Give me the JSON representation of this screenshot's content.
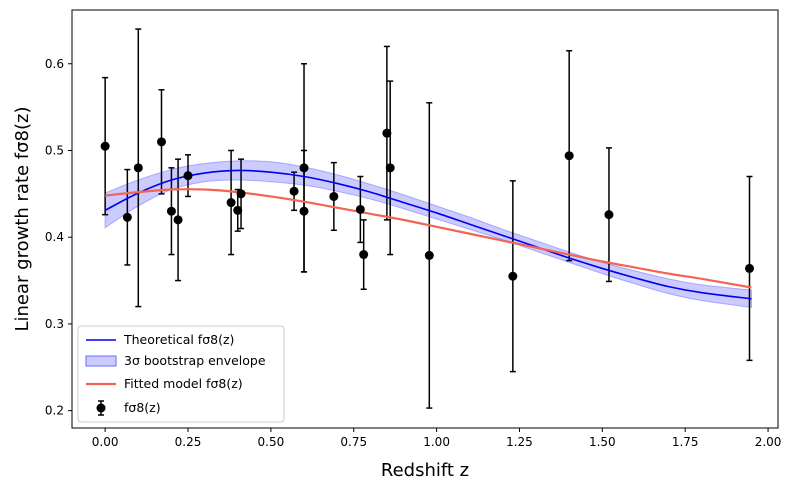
{
  "chart_data": {
    "type": "scatter",
    "xlabel": "Redshift z",
    "ylabel": "Linear growth rate fσ8(z)",
    "xlim": [
      -0.1,
      2.03
    ],
    "ylim": [
      0.18,
      0.662
    ],
    "x_ticks": [
      0.0,
      0.25,
      0.5,
      0.75,
      1.0,
      1.25,
      1.5,
      1.75,
      2.0
    ],
    "x_tick_labels": [
      "0.00",
      "0.25",
      "0.50",
      "0.75",
      "1.00",
      "1.25",
      "1.50",
      "1.75",
      "2.00"
    ],
    "y_ticks": [
      0.2,
      0.3,
      0.4,
      0.5,
      0.6
    ],
    "y_tick_labels": [
      "0.2",
      "0.3",
      "0.4",
      "0.5",
      "0.6"
    ],
    "grid": false,
    "legend_position": "lower-left",
    "colors": {
      "theoretical": "#0000ee",
      "envelope_fill": "#6b6bff",
      "fitted": "#f26552",
      "data": "#000000"
    },
    "series": [
      {
        "name": "Theoretical fσ8(z)",
        "type": "line",
        "x": [
          0.0,
          0.1,
          0.2,
          0.3,
          0.4,
          0.5,
          0.6,
          0.7,
          0.8,
          0.9,
          1.0,
          1.1,
          1.2,
          1.3,
          1.4,
          1.5,
          1.6,
          1.7,
          1.8,
          1.95
        ],
        "y": [
          0.431,
          0.451,
          0.466,
          0.474,
          0.477,
          0.475,
          0.47,
          0.462,
          0.452,
          0.44,
          0.428,
          0.415,
          0.402,
          0.389,
          0.376,
          0.364,
          0.353,
          0.343,
          0.336,
          0.329
        ]
      },
      {
        "name": "3σ bootstrap envelope",
        "type": "band",
        "x": [
          0.0,
          0.1,
          0.2,
          0.3,
          0.4,
          0.5,
          0.6,
          0.7,
          0.8,
          0.9,
          1.0,
          1.1,
          1.2,
          1.3,
          1.4,
          1.5,
          1.6,
          1.7,
          1.8,
          1.95
        ],
        "lower": [
          0.411,
          0.436,
          0.455,
          0.464,
          0.466,
          0.464,
          0.46,
          0.453,
          0.444,
          0.433,
          0.421,
          0.409,
          0.397,
          0.384,
          0.371,
          0.358,
          0.346,
          0.335,
          0.327,
          0.319
        ],
        "upper": [
          0.451,
          0.466,
          0.478,
          0.485,
          0.488,
          0.487,
          0.481,
          0.472,
          0.461,
          0.449,
          0.436,
          0.423,
          0.409,
          0.396,
          0.383,
          0.371,
          0.361,
          0.352,
          0.345,
          0.339
        ]
      },
      {
        "name": "Fitted model fσ8(z)",
        "type": "line",
        "x": [
          0.0,
          0.1,
          0.2,
          0.3,
          0.4,
          0.5,
          0.6,
          0.7,
          0.8,
          0.9,
          1.0,
          1.1,
          1.2,
          1.3,
          1.4,
          1.5,
          1.6,
          1.7,
          1.8,
          1.95
        ],
        "y": [
          0.448,
          0.452,
          0.455,
          0.455,
          0.452,
          0.447,
          0.441,
          0.434,
          0.427,
          0.42,
          0.412,
          0.404,
          0.396,
          0.388,
          0.38,
          0.372,
          0.365,
          0.358,
          0.352,
          0.342
        ]
      },
      {
        "name": "fσ8(z)",
        "type": "errorbar",
        "points": [
          {
            "x": 0.0,
            "y": 0.505,
            "err": 0.079
          },
          {
            "x": 0.067,
            "y": 0.423,
            "err": 0.055
          },
          {
            "x": 0.1,
            "y": 0.48,
            "err": 0.16
          },
          {
            "x": 0.17,
            "y": 0.51,
            "err": 0.06
          },
          {
            "x": 0.2,
            "y": 0.43,
            "err": 0.05
          },
          {
            "x": 0.22,
            "y": 0.42,
            "err": 0.07
          },
          {
            "x": 0.25,
            "y": 0.471,
            "err": 0.024
          },
          {
            "x": 0.38,
            "y": 0.44,
            "err": 0.06
          },
          {
            "x": 0.4,
            "y": 0.431,
            "err": 0.024
          },
          {
            "x": 0.41,
            "y": 0.45,
            "err": 0.04
          },
          {
            "x": 0.57,
            "y": 0.453,
            "err": 0.022
          },
          {
            "x": 0.6,
            "y": 0.43,
            "err": 0.07
          },
          {
            "x": 0.6,
            "y": 0.48,
            "err": 0.12
          },
          {
            "x": 0.69,
            "y": 0.447,
            "err": 0.039
          },
          {
            "x": 0.77,
            "y": 0.432,
            "err": 0.038
          },
          {
            "x": 0.78,
            "y": 0.38,
            "err": 0.04
          },
          {
            "x": 0.85,
            "y": 0.52,
            "err": 0.1
          },
          {
            "x": 0.86,
            "y": 0.48,
            "err": 0.1
          },
          {
            "x": 0.978,
            "y": 0.379,
            "err": 0.176
          },
          {
            "x": 1.23,
            "y": 0.355,
            "err": 0.11
          },
          {
            "x": 1.4,
            "y": 0.494,
            "err": 0.121
          },
          {
            "x": 1.52,
            "y": 0.426,
            "err": 0.077
          },
          {
            "x": 1.944,
            "y": 0.364,
            "err": 0.106
          }
        ]
      }
    ]
  }
}
